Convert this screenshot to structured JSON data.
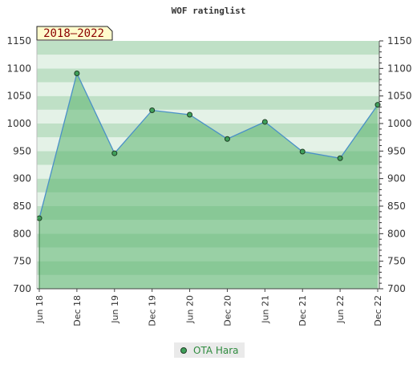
{
  "chart_data": {
    "type": "area",
    "title": "WOF ratinglist",
    "period_label": "2018–2022",
    "x": [
      "Jun 18",
      "Dec 18",
      "Jun 19",
      "Dec 19",
      "Jun 20",
      "Dec 20",
      "Jun 21",
      "Dec 21",
      "Jun 22",
      "Dec 22"
    ],
    "series": [
      {
        "name": "OTA Hara",
        "values": [
          828,
          1091,
          946,
          1024,
          1016,
          972,
          1003,
          949,
          937,
          1034
        ]
      }
    ],
    "ylim": [
      700,
      1150
    ],
    "yticks": [
      700,
      750,
      800,
      850,
      900,
      950,
      1000,
      1050,
      1100,
      1150
    ],
    "y_axes": [
      "left",
      "right"
    ],
    "grid": "horizontal bands",
    "legend_position": "bottom-center"
  },
  "colors": {
    "area_fill": "#5bb56f",
    "line": "#4a90c8",
    "marker_fill": "#3fa05a",
    "marker_stroke": "#1f3d25",
    "band_dark": "#bfe0c6",
    "band_light": "#e4f2e7",
    "period_badge_bg": "#fffbcc",
    "period_badge_text": "#8b0000",
    "legend_text": "#2e8b3e"
  }
}
